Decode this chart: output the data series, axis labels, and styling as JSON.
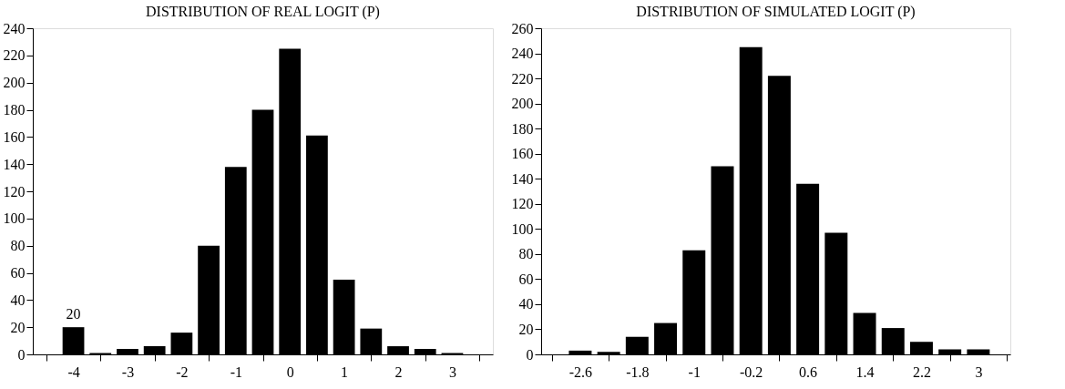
{
  "chart_data": [
    {
      "type": "histogram",
      "title": "DISTRIBUTION OF REAL LOGIT (P)",
      "bins": [
        -4.25,
        -3.75,
        -3.25,
        -2.75,
        -2.25,
        -1.75,
        -1.25,
        -0.75,
        -0.25,
        0.25,
        0.75,
        1.25,
        1.75,
        2.25,
        2.75,
        3.25
      ],
      "values": [
        20,
        1,
        4,
        6,
        16,
        80,
        138,
        180,
        225,
        161,
        55,
        19,
        6,
        4,
        1
      ],
      "color": "#000000",
      "xlim": [
        -4.75,
        3.75
      ],
      "xticks": [
        -4,
        -3,
        -2,
        -1,
        0,
        1,
        2,
        3,
        {
          "value": -4.5,
          "label": null
        },
        {
          "value": -3.5,
          "label": null
        },
        {
          "value": -2.5,
          "label": null
        },
        {
          "value": -1.5,
          "label": null
        },
        {
          "value": -0.5,
          "label": null
        },
        {
          "value": 0.5,
          "label": null
        },
        {
          "value": 1.5,
          "label": null
        },
        {
          "value": 2.5,
          "label": null
        },
        {
          "value": 3.5,
          "label": null
        }
      ],
      "ylim": [
        0,
        240
      ],
      "yticks": [
        0,
        20,
        40,
        60,
        80,
        100,
        120,
        140,
        160,
        180,
        200,
        220,
        240
      ],
      "value_labels": [
        "20",
        null,
        null,
        null,
        null,
        null,
        null,
        null,
        null,
        null,
        null,
        null,
        null,
        null,
        null
      ]
    },
    {
      "type": "histogram",
      "title": "DISTRIBUTION OF SIMULATED LOGIT (P)",
      "bins": [
        -2.8,
        -2.4,
        -2.0,
        -1.6,
        -1.2,
        -0.8,
        -0.4,
        0.0,
        0.4,
        0.8,
        1.2,
        1.6,
        2.0,
        2.4,
        2.8,
        3.2
      ],
      "values": [
        3,
        2,
        14,
        25,
        83,
        150,
        245,
        222,
        136,
        97,
        33,
        21,
        10,
        4,
        4
      ],
      "color": "#000000",
      "xlim": [
        -3.15,
        3.45
      ],
      "xticks": [
        -2.6,
        -1.8,
        -1,
        -0.2,
        0.6,
        1.4,
        2.2,
        3,
        {
          "value": -3.0,
          "label": null
        },
        {
          "value": -2.2,
          "label": null
        },
        {
          "value": -1.4,
          "label": null
        },
        {
          "value": -0.6,
          "label": null
        },
        {
          "value": 0.2,
          "label": null
        },
        {
          "value": 1.0,
          "label": null
        },
        {
          "value": 1.8,
          "label": null
        },
        {
          "value": 2.6,
          "label": null
        },
        {
          "value": 3.4,
          "label": null
        }
      ],
      "ylim": [
        0,
        260
      ],
      "yticks": [
        0,
        20,
        40,
        60,
        80,
        100,
        120,
        140,
        160,
        180,
        200,
        220,
        240,
        260
      ]
    }
  ]
}
